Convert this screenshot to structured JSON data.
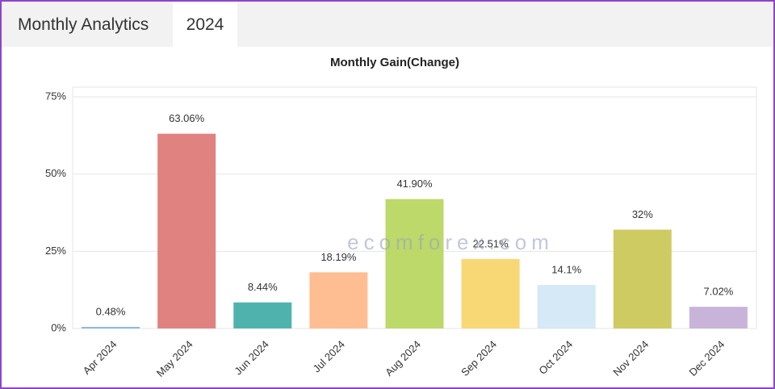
{
  "tabs": [
    "Monthly Analytics",
    "2024"
  ],
  "watermark": "ecomforex.com",
  "chart_data": {
    "type": "bar",
    "title": "Monthly Gain(Change)",
    "categories": [
      "Apr 2024",
      "May 2024",
      "Jun 2024",
      "Jul 2024",
      "Aug 2024",
      "Sep 2024",
      "Oct 2024",
      "Nov 2024",
      "Dec 2024"
    ],
    "values": [
      0.48,
      63.06,
      8.44,
      18.19,
      41.9,
      22.51,
      14.1,
      32,
      7.02
    ],
    "value_labels": [
      "0.48%",
      "63.06%",
      "8.44%",
      "18.19%",
      "41.90%",
      "22.51%",
      "14.1%",
      "32%",
      "7.02%"
    ],
    "colors": [
      "#7fb2e5",
      "#e0827f",
      "#4fb3ad",
      "#ffbe91",
      "#bcd96a",
      "#f8d775",
      "#d5e9f7",
      "#cfcb63",
      "#c9b4d9"
    ],
    "ylim": [
      0,
      75
    ],
    "yticks": [
      {
        "value": 0,
        "label": "0%"
      },
      {
        "value": 25,
        "label": "25%"
      },
      {
        "value": 50,
        "label": "50%"
      },
      {
        "value": 75,
        "label": "75%"
      }
    ],
    "grid": true
  }
}
